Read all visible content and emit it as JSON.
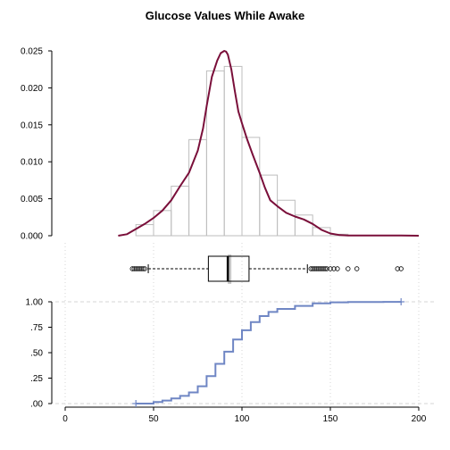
{
  "title": "Glucose Values While Awake",
  "colors": {
    "density": "#7a0f3a",
    "hist_border": "#bdbdbd",
    "ecdf": "#6f86c4",
    "grid": "#d6d6d6",
    "axis": "#000000"
  },
  "chart_data": [
    {
      "type": "bar",
      "subtype": "histogram_with_density",
      "title": "Glucose Values While Awake",
      "xlim": [
        0,
        200
      ],
      "ylim": [
        0,
        0.025
      ],
      "y_ticks": [
        "0.000",
        "0.005",
        "0.010",
        "0.015",
        "0.020",
        "0.025"
      ],
      "y_tick_values": [
        0,
        0.005,
        0.01,
        0.015,
        0.02,
        0.025
      ],
      "bins": [
        {
          "from": 40,
          "to": 50,
          "density": 0.0015
        },
        {
          "from": 50,
          "to": 60,
          "density": 0.0034
        },
        {
          "from": 60,
          "to": 70,
          "density": 0.0067
        },
        {
          "from": 70,
          "to": 80,
          "density": 0.013
        },
        {
          "from": 80,
          "to": 90,
          "density": 0.0223
        },
        {
          "from": 90,
          "to": 100,
          "density": 0.0229
        },
        {
          "from": 100,
          "to": 110,
          "density": 0.0133
        },
        {
          "from": 110,
          "to": 120,
          "density": 0.0082
        },
        {
          "from": 120,
          "to": 130,
          "density": 0.0048
        },
        {
          "from": 130,
          "to": 140,
          "density": 0.0028
        },
        {
          "from": 140,
          "to": 150,
          "density": 0.0011
        },
        {
          "from": 150,
          "to": 160,
          "density": 0.0002
        },
        {
          "from": 160,
          "to": 170,
          "density": 5e-05
        },
        {
          "from": 170,
          "to": 180,
          "density": 3e-05
        },
        {
          "from": 180,
          "to": 190,
          "density": 3e-05
        }
      ],
      "density_curve": {
        "x": [
          30,
          35,
          40,
          45,
          50,
          55,
          60,
          65,
          70,
          75,
          78,
          80,
          83,
          86,
          88,
          90,
          91,
          92,
          94,
          96,
          98,
          100,
          103,
          106,
          110,
          113,
          116,
          120,
          125,
          130,
          135,
          140,
          145,
          150,
          155,
          160,
          170,
          180,
          190,
          200
        ],
        "y": [
          0.0,
          0.0002,
          0.0009,
          0.0016,
          0.0024,
          0.0034,
          0.0048,
          0.0067,
          0.0085,
          0.0115,
          0.0145,
          0.0175,
          0.0215,
          0.0237,
          0.0247,
          0.025,
          0.0249,
          0.0245,
          0.0225,
          0.0195,
          0.0168,
          0.0152,
          0.013,
          0.011,
          0.0085,
          0.0065,
          0.0048,
          0.004,
          0.0031,
          0.0026,
          0.0022,
          0.0016,
          0.0008,
          0.0003,
          0.0001,
          4e-05,
          2e-05,
          2e-05,
          2e-05,
          0.0
        ]
      }
    },
    {
      "type": "boxplot",
      "xlim": [
        0,
        200
      ],
      "min_whisker": 47,
      "q1": 81,
      "median": 92,
      "mean": 93,
      "q3": 104,
      "max_whisker": 137,
      "outliers_low": [
        38,
        39,
        40,
        41,
        42,
        43,
        44,
        45
      ],
      "outliers_high": [
        139,
        140,
        141,
        142,
        143,
        144,
        145,
        146,
        147,
        148,
        150,
        152,
        154,
        160,
        165,
        188,
        190
      ]
    },
    {
      "type": "line",
      "subtype": "ecdf",
      "xlim": [
        0,
        200
      ],
      "ylim": [
        0,
        1
      ],
      "x_ticks": [
        "0",
        "50",
        "100",
        "150",
        "200"
      ],
      "x_tick_values": [
        0,
        50,
        100,
        150,
        200
      ],
      "y_ticks": [
        ".00",
        ".25",
        ".50",
        ".75",
        "1.00"
      ],
      "y_tick_values": [
        0,
        0.25,
        0.5,
        0.75,
        1.0
      ],
      "x": [
        40,
        50,
        55,
        60,
        65,
        70,
        75,
        80,
        85,
        90,
        95,
        100,
        105,
        110,
        115,
        120,
        130,
        140,
        150,
        160,
        170,
        180,
        190
      ],
      "y": [
        0.0,
        0.015,
        0.03,
        0.05,
        0.075,
        0.11,
        0.17,
        0.27,
        0.39,
        0.51,
        0.63,
        0.72,
        0.8,
        0.86,
        0.9,
        0.93,
        0.96,
        0.985,
        0.995,
        0.997,
        0.998,
        0.999,
        1.0
      ]
    }
  ]
}
